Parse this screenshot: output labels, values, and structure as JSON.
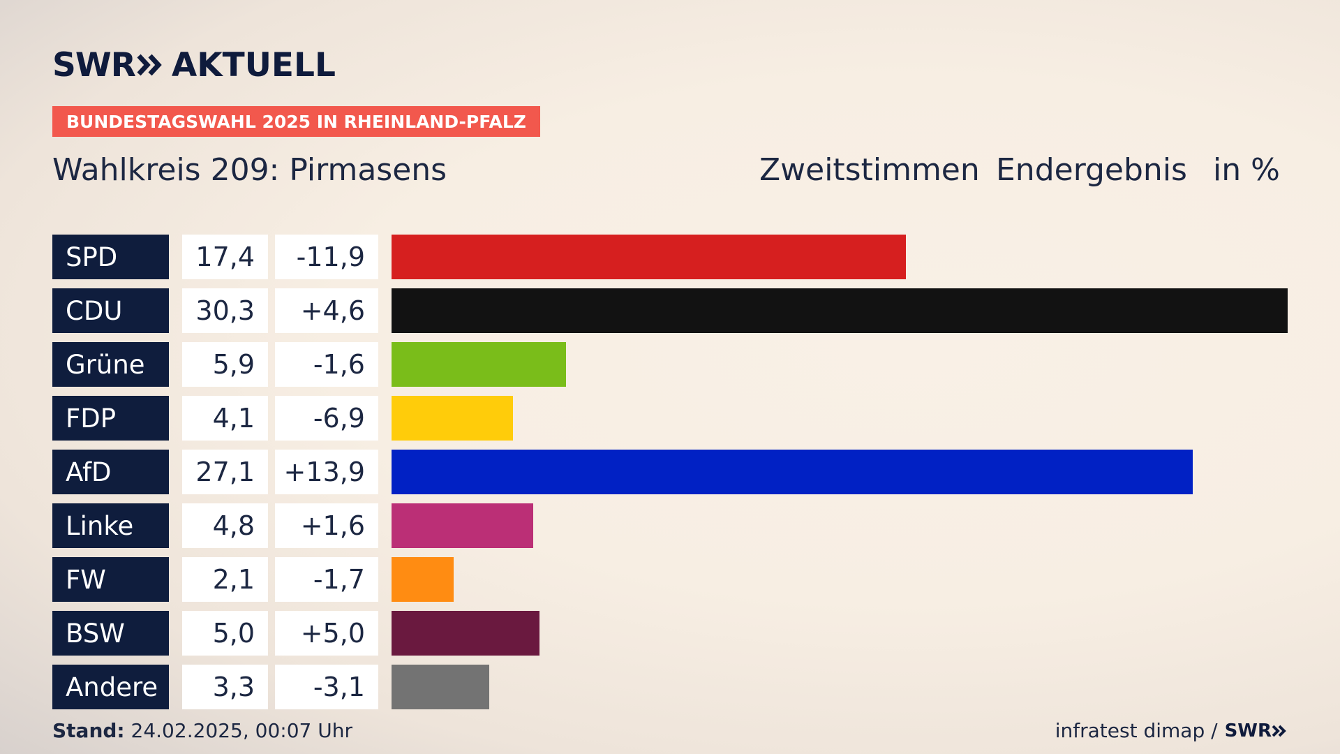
{
  "logo": {
    "brand": "SWR",
    "product": "AKTUELL"
  },
  "badge": "BUNDESTAGSWAHL 2025 IN RHEINLAND-PFALZ",
  "subtitle": "Wahlkreis 209: Pirmasens",
  "header": {
    "vote_type": "Zweitstimmen",
    "result_type": "Endergebnis",
    "unit": "in %"
  },
  "chart_data": {
    "type": "bar",
    "orientation": "horizontal",
    "categories": [
      "SPD",
      "CDU",
      "Grüne",
      "FDP",
      "AfD",
      "Linke",
      "FW",
      "BSW",
      "Andere"
    ],
    "values": [
      17.4,
      30.3,
      5.9,
      4.1,
      27.1,
      4.8,
      2.1,
      5.0,
      3.3
    ],
    "value_labels": [
      "17,4",
      "30,3",
      "5,9",
      "4,1",
      "27,1",
      "4,8",
      "2,1",
      "5,0",
      "3,3"
    ],
    "change_labels": [
      "-11,9",
      "+4,6",
      "-1,6",
      "-6,9",
      "+13,9",
      "+1,6",
      "-1,7",
      "+5,0",
      "-3,1"
    ],
    "colors": [
      "#d61f1f",
      "#121212",
      "#7abd1a",
      "#ffcc0a",
      "#0121c4",
      "#bb2f76",
      "#ff8c12",
      "#6a193f",
      "#737373"
    ],
    "grid": false,
    "legend": "none"
  },
  "footer": {
    "stand_label": "Stand:",
    "stand_value": "24.02.2025, 00:07 Uhr",
    "source": "infratest dimap /",
    "source_brand": "SWR"
  }
}
